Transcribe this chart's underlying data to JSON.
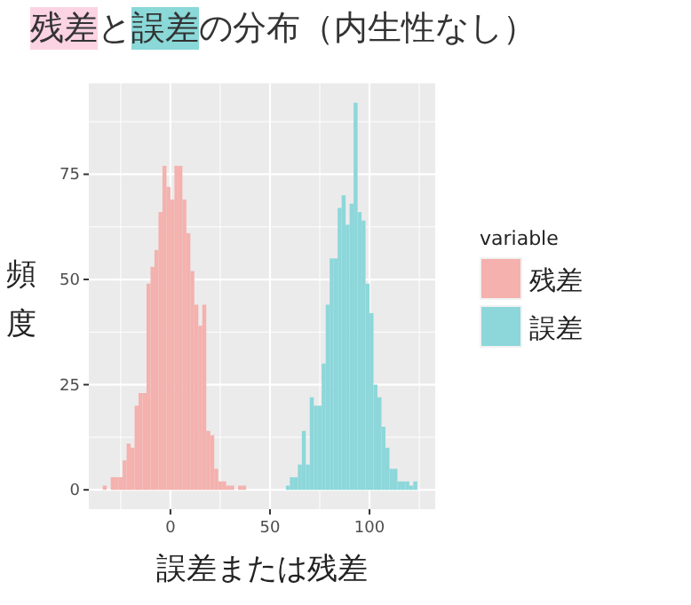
{
  "chart_data": {
    "type": "histogram",
    "title": "残差と誤差の分布（内生性なし）",
    "xlabel": "誤差または残差",
    "ylabel": "頻度",
    "legend_title": "variable",
    "bins": [
      -34,
      -32,
      -30,
      -28,
      -26,
      -24,
      -22,
      -20,
      -18,
      -16,
      -14,
      -12,
      -10,
      -8,
      -6,
      -4,
      -2,
      0,
      2,
      4,
      6,
      8,
      10,
      12,
      14,
      16,
      18,
      20,
      22,
      24,
      26,
      28,
      30,
      32,
      34,
      36,
      38,
      40,
      42,
      44,
      46,
      48,
      50,
      52,
      54,
      56,
      58,
      60,
      62,
      64,
      66,
      68,
      70,
      72,
      74,
      76,
      78,
      80,
      82,
      84,
      86,
      88,
      90,
      92,
      94,
      96,
      98,
      100,
      102,
      104,
      106,
      108,
      110,
      112,
      114,
      116,
      118,
      120,
      122,
      124,
      126
    ],
    "series": [
      {
        "name": "残差",
        "color": "#f4b1ad",
        "values": [
          1,
          0,
          3,
          3,
          3,
          7,
          11,
          10,
          20,
          23,
          23,
          49,
          53,
          57,
          66,
          77,
          72,
          69,
          77,
          77,
          69,
          61,
          52,
          44,
          39,
          44,
          14,
          13,
          5,
          2,
          2,
          1,
          1,
          0,
          1,
          1,
          0,
          0,
          0,
          0,
          0,
          0,
          0,
          0,
          0,
          0,
          0,
          0,
          0,
          0,
          0,
          0,
          0,
          0,
          0,
          0,
          0,
          0,
          0,
          0,
          0,
          0,
          0,
          0,
          0,
          0,
          0,
          0,
          0,
          0,
          0,
          0,
          0,
          0,
          0,
          0,
          0,
          0,
          0,
          0
        ]
      },
      {
        "name": "誤差",
        "color": "#8dd7da",
        "values": [
          0,
          0,
          0,
          0,
          0,
          0,
          0,
          0,
          0,
          0,
          0,
          0,
          0,
          0,
          0,
          0,
          0,
          0,
          0,
          0,
          0,
          0,
          0,
          0,
          0,
          0,
          0,
          0,
          0,
          0,
          0,
          0,
          0,
          0,
          0,
          0,
          0,
          0,
          0,
          0,
          0,
          0,
          0,
          0,
          0,
          0,
          1,
          3,
          3,
          6,
          14,
          6,
          22,
          20,
          20,
          30,
          44,
          55,
          55,
          67,
          70,
          63,
          68,
          92,
          66,
          64,
          49,
          42,
          25,
          22,
          15,
          10,
          5,
          5,
          2,
          2,
          2,
          1,
          2,
          0
        ]
      }
    ],
    "xlim": [
      -41,
      133
    ],
    "ylim": [
      -4.6,
      96.6
    ],
    "xticks": [
      0,
      50,
      100
    ],
    "yticks": [
      0,
      25,
      50,
      75
    ],
    "grid": true,
    "legend": "right"
  }
}
